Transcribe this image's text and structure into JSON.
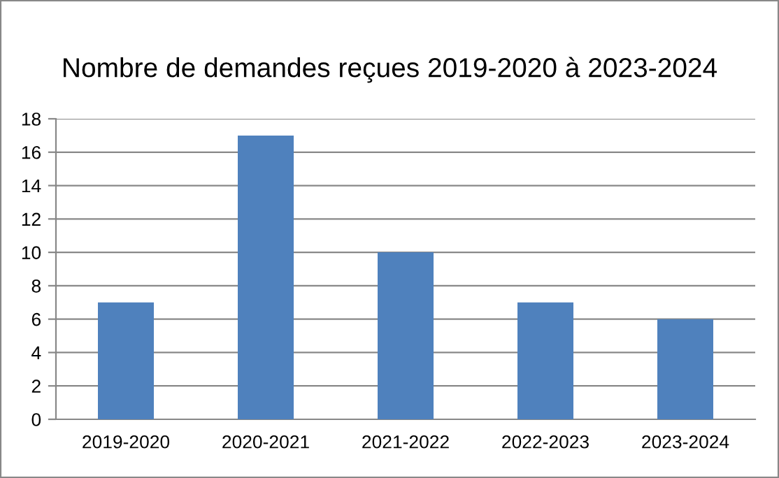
{
  "chart_data": {
    "type": "bar",
    "title": "Nombre de demandes reçues 2019-2020 à 2023-2024",
    "categories": [
      "2019-2020",
      "2020-2021",
      "2021-2022",
      "2022-2023",
      "2023-2024"
    ],
    "values": [
      7,
      17,
      10,
      7,
      6
    ],
    "color": "#4f81bd",
    "ylim": [
      0,
      18
    ],
    "yticks": [
      0,
      2,
      4,
      6,
      8,
      10,
      12,
      14,
      16,
      18
    ],
    "grid": "y",
    "legend": false
  }
}
